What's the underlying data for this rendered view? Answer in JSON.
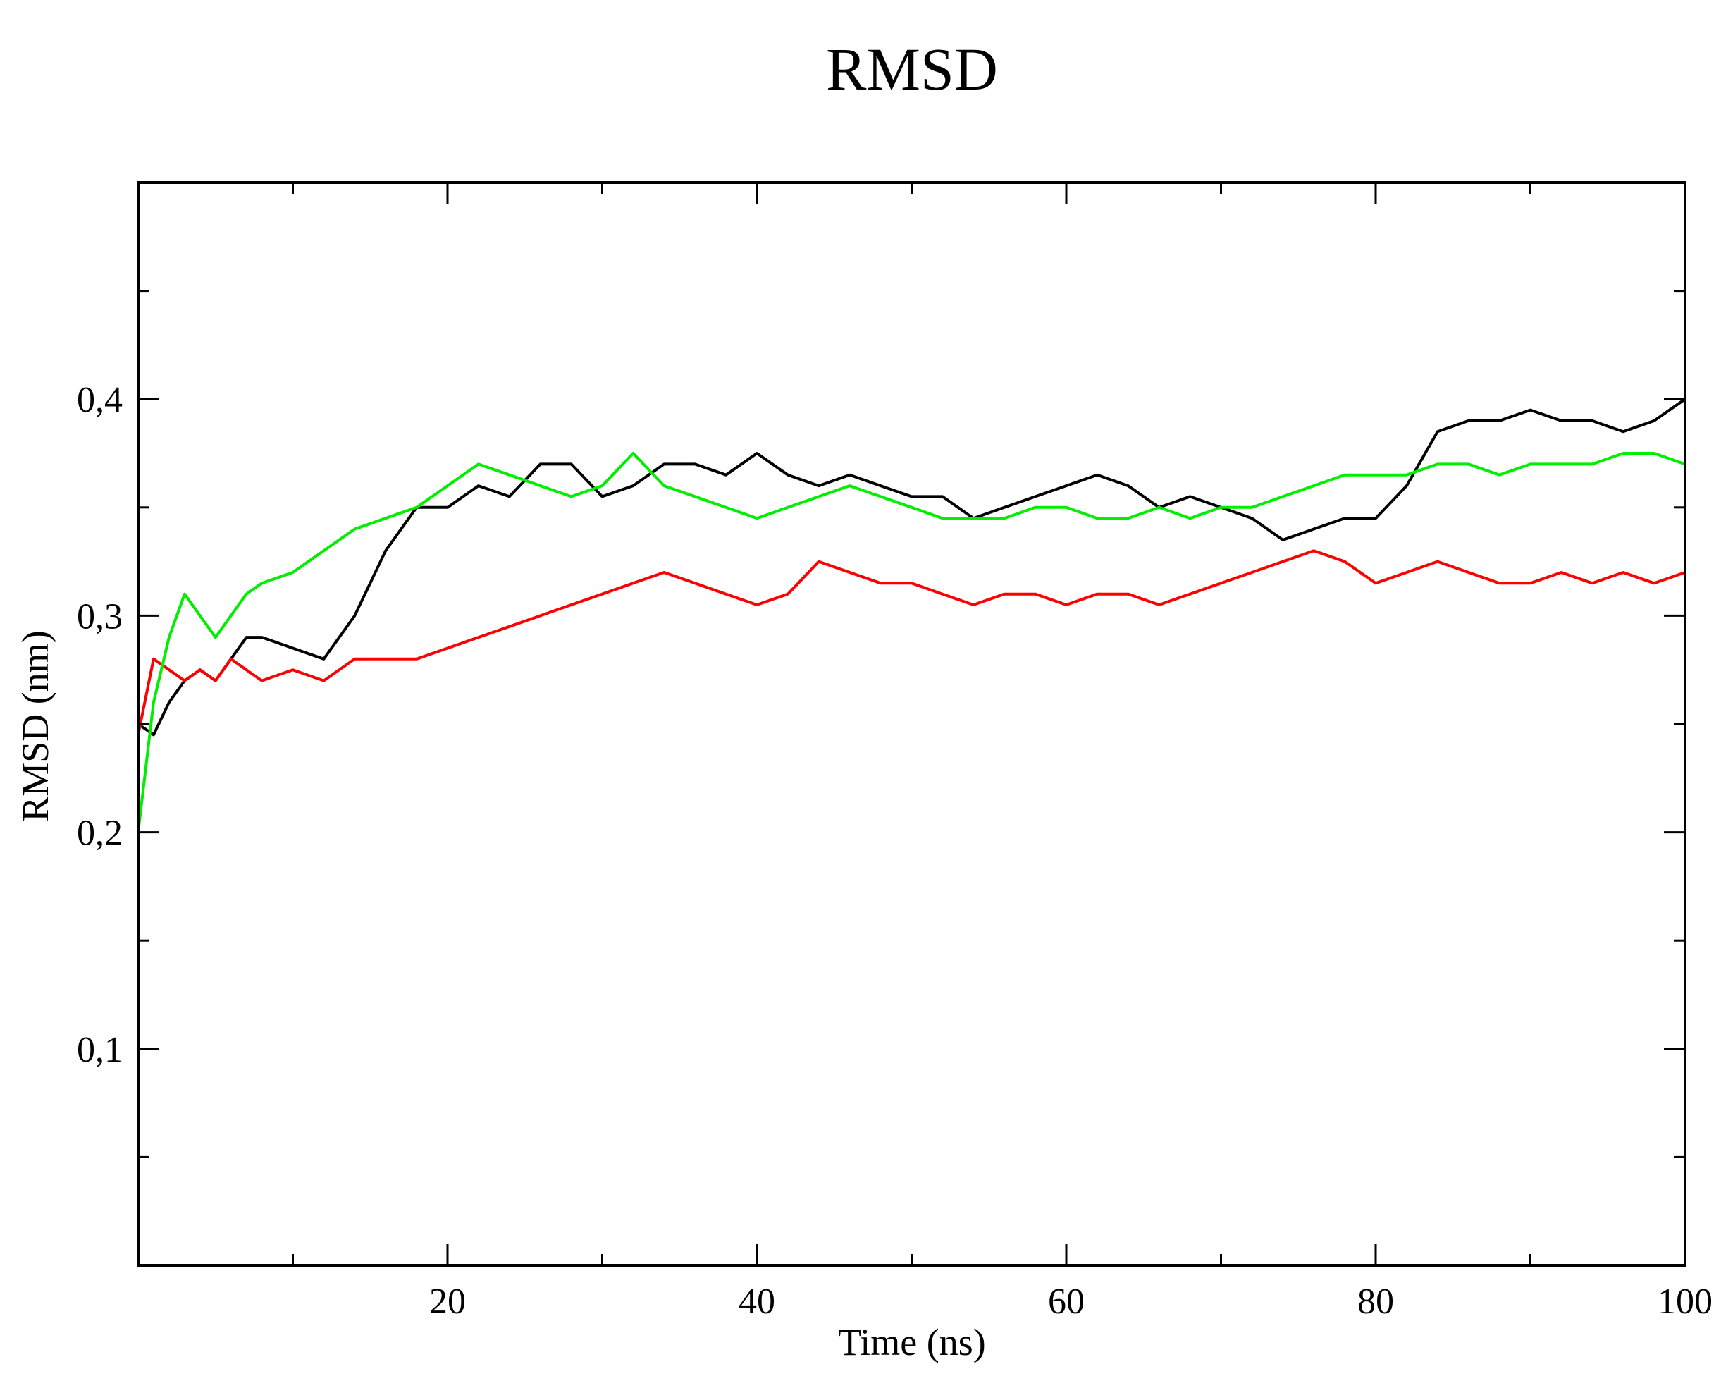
{
  "chart_data": {
    "type": "line",
    "title": "RMSD",
    "xlabel": "Time (ns)",
    "ylabel": "RMSD (nm)",
    "xlim": [
      0,
      100
    ],
    "ylim": [
      0,
      0.5
    ],
    "x_ticks": [
      20,
      40,
      60,
      80,
      100
    ],
    "x_tick_labels": [
      "20",
      "40",
      "60",
      "80",
      "100"
    ],
    "x_minor_ticks": [
      10,
      30,
      50,
      70,
      90
    ],
    "y_ticks": [
      0.1,
      0.2,
      0.3,
      0.4
    ],
    "y_tick_labels": [
      "0,1",
      "0,2",
      "0,3",
      "0,4"
    ],
    "y_minor_ticks": [
      0.05,
      0.15,
      0.25,
      0.35,
      0.45
    ],
    "grid": false,
    "legend": "none",
    "series": [
      {
        "color": "#000000",
        "x": [
          0,
          1,
          2,
          3,
          4,
          5,
          6,
          7,
          8,
          10,
          12,
          14,
          16,
          18,
          20,
          22,
          24,
          26,
          28,
          30,
          32,
          34,
          36,
          38,
          40,
          42,
          44,
          46,
          48,
          50,
          52,
          54,
          56,
          58,
          60,
          62,
          64,
          66,
          68,
          70,
          72,
          74,
          76,
          78,
          80,
          82,
          84,
          86,
          88,
          90,
          92,
          94,
          96,
          98,
          100
        ],
        "y": [
          0.25,
          0.245,
          0.26,
          0.27,
          0.275,
          0.27,
          0.28,
          0.29,
          0.29,
          0.285,
          0.28,
          0.3,
          0.33,
          0.35,
          0.35,
          0.36,
          0.355,
          0.37,
          0.37,
          0.355,
          0.36,
          0.37,
          0.37,
          0.365,
          0.375,
          0.365,
          0.36,
          0.365,
          0.36,
          0.355,
          0.355,
          0.345,
          0.35,
          0.355,
          0.36,
          0.365,
          0.36,
          0.35,
          0.355,
          0.35,
          0.345,
          0.335,
          0.34,
          0.345,
          0.345,
          0.36,
          0.385,
          0.39,
          0.39,
          0.395,
          0.39,
          0.39,
          0.385,
          0.39,
          0.4
        ]
      },
      {
        "color": "#ff0000",
        "x": [
          0,
          1,
          2,
          3,
          4,
          5,
          6,
          7,
          8,
          10,
          12,
          14,
          16,
          18,
          20,
          22,
          24,
          26,
          28,
          30,
          32,
          34,
          36,
          38,
          40,
          42,
          44,
          46,
          48,
          50,
          52,
          54,
          56,
          58,
          60,
          62,
          64,
          66,
          68,
          70,
          72,
          74,
          76,
          78,
          80,
          82,
          84,
          86,
          88,
          90,
          92,
          94,
          96,
          98,
          100
        ],
        "y": [
          0.245,
          0.28,
          0.275,
          0.27,
          0.275,
          0.27,
          0.28,
          0.275,
          0.27,
          0.275,
          0.27,
          0.28,
          0.28,
          0.28,
          0.285,
          0.29,
          0.295,
          0.3,
          0.305,
          0.31,
          0.315,
          0.32,
          0.315,
          0.31,
          0.305,
          0.31,
          0.325,
          0.32,
          0.315,
          0.315,
          0.31,
          0.305,
          0.31,
          0.31,
          0.305,
          0.31,
          0.31,
          0.305,
          0.31,
          0.315,
          0.32,
          0.325,
          0.33,
          0.325,
          0.315,
          0.32,
          0.325,
          0.32,
          0.315,
          0.315,
          0.32,
          0.315,
          0.32,
          0.315,
          0.32
        ]
      },
      {
        "color": "#00ee00",
        "x": [
          0,
          1,
          2,
          3,
          4,
          5,
          6,
          7,
          8,
          10,
          12,
          14,
          16,
          18,
          20,
          22,
          24,
          26,
          28,
          30,
          32,
          34,
          36,
          38,
          40,
          42,
          44,
          46,
          48,
          50,
          52,
          54,
          56,
          58,
          60,
          62,
          64,
          66,
          68,
          70,
          72,
          74,
          76,
          78,
          80,
          82,
          84,
          86,
          88,
          90,
          92,
          94,
          96,
          98,
          100
        ],
        "y": [
          0.2,
          0.26,
          0.29,
          0.31,
          0.3,
          0.29,
          0.3,
          0.31,
          0.315,
          0.32,
          0.33,
          0.34,
          0.345,
          0.35,
          0.36,
          0.37,
          0.365,
          0.36,
          0.355,
          0.36,
          0.375,
          0.36,
          0.355,
          0.35,
          0.345,
          0.35,
          0.355,
          0.36,
          0.355,
          0.35,
          0.345,
          0.345,
          0.345,
          0.35,
          0.35,
          0.345,
          0.345,
          0.35,
          0.345,
          0.35,
          0.35,
          0.355,
          0.36,
          0.365,
          0.365,
          0.365,
          0.37,
          0.37,
          0.365,
          0.37,
          0.37,
          0.37,
          0.375,
          0.375,
          0.37
        ]
      }
    ]
  }
}
